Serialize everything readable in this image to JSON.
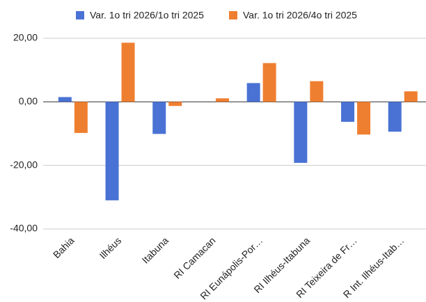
{
  "chart_data": {
    "type": "bar",
    "categories": [
      "Bahia",
      "Ilhéus",
      "Itabuna",
      "RI Camacan",
      "RI Eunápolis-Por…",
      "RI Ilhéus-Itabuna",
      "RI Teixeira de Fr…",
      "R Int. Ilhéus-Itab…"
    ],
    "series": [
      {
        "name": "Var. 1o tri 2026/1o tri 2025",
        "color": "#4a72d4",
        "values": [
          1.5,
          -31.0,
          -10.1,
          0,
          5.9,
          -19.2,
          -6.3,
          -9.4
        ]
      },
      {
        "name": "Var. 1o tri 2026/4o tri 2025",
        "color": "#ef7f30",
        "values": [
          -9.8,
          18.6,
          -1.3,
          1.1,
          12.2,
          6.5,
          -10.3,
          3.3
        ]
      }
    ],
    "ylim": [
      -40,
      20
    ],
    "yticks": [
      {
        "value": -40,
        "label": "-40,00"
      },
      {
        "value": -20,
        "label": "-20,00"
      },
      {
        "value": 0,
        "label": "0,00"
      },
      {
        "value": 20,
        "label": "20,00"
      }
    ],
    "grid": true,
    "legend": "top"
  }
}
